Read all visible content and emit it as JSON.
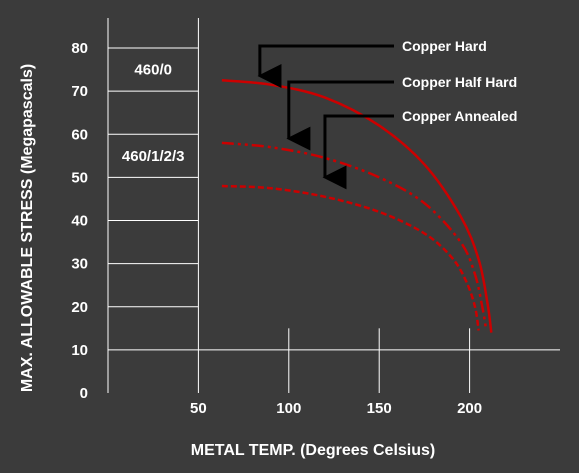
{
  "chart_data": {
    "type": "line",
    "xlabel": "METAL TEMP. (Degrees Celsius)",
    "ylabel": "MAX. ALLOWABLE STRESS (Megapascals)",
    "xlim": [
      0,
      250
    ],
    "ylim": [
      0,
      80
    ],
    "x_ticks": [
      "50",
      "100",
      "150",
      "200"
    ],
    "x_tick_values": [
      50,
      100,
      150,
      200
    ],
    "y_ticks": [
      "80",
      "70",
      "60",
      "50",
      "40",
      "30",
      "20",
      "10",
      "0"
    ],
    "y_tick_values": [
      80,
      70,
      60,
      50,
      40,
      30,
      20,
      10,
      0
    ],
    "grid": true,
    "series": [
      {
        "name": "Copper Hard",
        "style": "solid",
        "color": "#cc0000",
        "x": [
          63,
          90,
          120,
          150,
          175,
          195,
          205,
          210,
          212
        ],
        "y": [
          72.5,
          71.5,
          68.5,
          62,
          53,
          41,
          31,
          20.5,
          14
        ]
      },
      {
        "name": "Copper Half Hard",
        "style": "dash-dot-dot",
        "color": "#cc0000",
        "x": [
          63,
          90,
          120,
          150,
          175,
          195,
          203,
          207,
          209
        ],
        "y": [
          58,
          57,
          54.5,
          50,
          44,
          35,
          27.5,
          20,
          15
        ]
      },
      {
        "name": "Copper Annealed",
        "style": "dashed",
        "color": "#cc0000",
        "x": [
          63,
          90,
          120,
          150,
          175,
          190,
          198,
          203,
          205
        ],
        "y": [
          48,
          47.5,
          45.5,
          42,
          37,
          31.5,
          26,
          20,
          14.5
        ]
      }
    ],
    "annotations": [
      {
        "text": "Copper Hard",
        "arrow_x": 84,
        "arrow_y": 73.5
      },
      {
        "text": "Copper Half Hard",
        "arrow_x": 100,
        "arrow_y": 59
      },
      {
        "text": "Copper Annealed",
        "arrow_x": 120,
        "arrow_y": 50
      }
    ],
    "box_labels": [
      {
        "text": "460/0",
        "x": 25,
        "y": 75
      },
      {
        "text": "460/1/2/3",
        "x": 25,
        "y": 55
      }
    ]
  }
}
